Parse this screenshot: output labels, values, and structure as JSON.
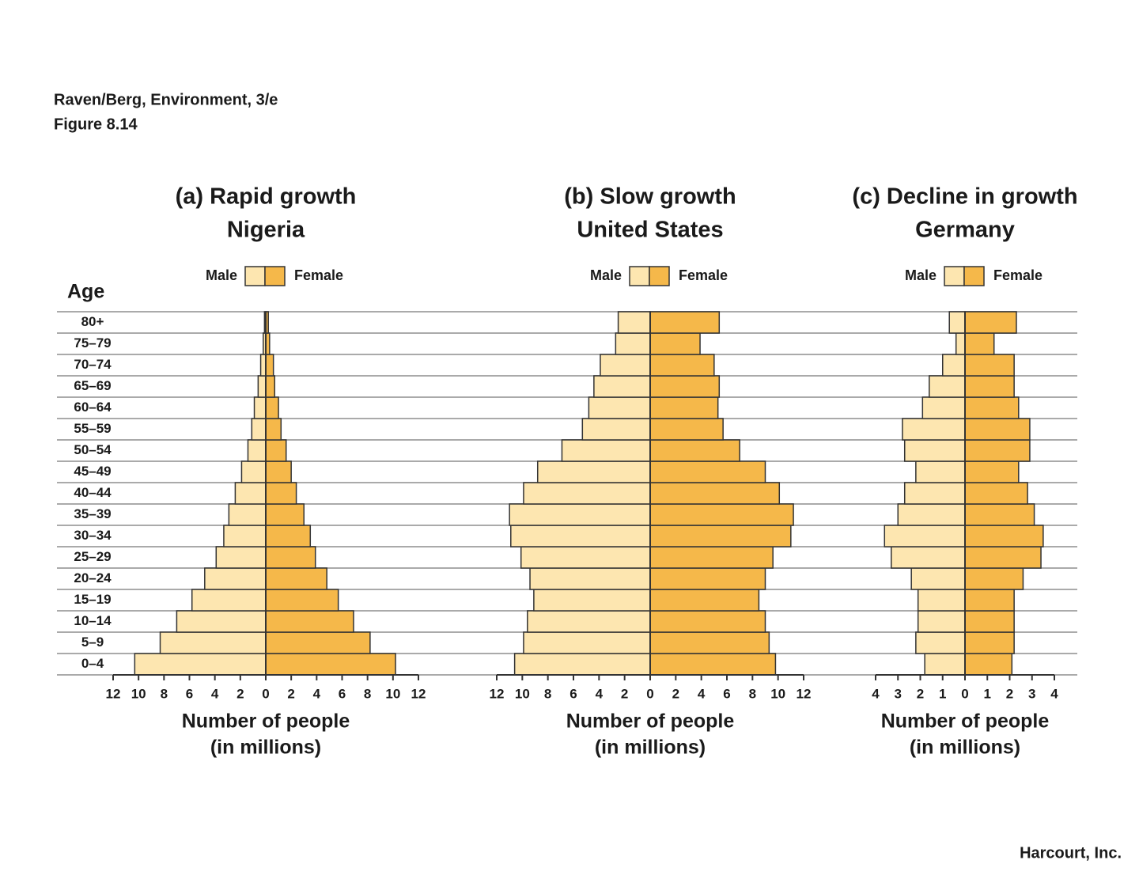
{
  "header": {
    "source": "Raven/Berg, Environment, 3/e",
    "figure": "Figure 8.14"
  },
  "footer": "Harcourt, Inc.",
  "chart_data": [
    {
      "type": "pyramid",
      "title": "(a) Rapid growth",
      "subtitle": "Nigeria",
      "ylabel": "Age",
      "xlabel": [
        "Number of people",
        "(in millions)"
      ],
      "categories": [
        "0–4",
        "5–9",
        "10–14",
        "15–19",
        "20–24",
        "25–29",
        "30–34",
        "35–39",
        "40–44",
        "45–49",
        "50–54",
        "55–59",
        "60–64",
        "65–69",
        "70–74",
        "75–79",
        "80+"
      ],
      "series": [
        {
          "name": "Male",
          "color": "#fde6b0",
          "values": [
            10.3,
            8.3,
            7.0,
            5.8,
            4.8,
            3.9,
            3.3,
            2.9,
            2.4,
            1.9,
            1.4,
            1.1,
            0.9,
            0.6,
            0.4,
            0.2,
            0.1
          ]
        },
        {
          "name": "Female",
          "color": "#f5b84a",
          "values": [
            10.2,
            8.2,
            6.9,
            5.7,
            4.8,
            3.9,
            3.5,
            3.0,
            2.4,
            2.0,
            1.6,
            1.2,
            1.0,
            0.7,
            0.6,
            0.3,
            0.2
          ]
        }
      ],
      "xlim": [
        0,
        12
      ],
      "xticks": [
        0,
        2,
        4,
        6,
        8,
        10,
        12
      ]
    },
    {
      "type": "pyramid",
      "title": "(b) Slow growth",
      "subtitle": "United States",
      "xlabel": [
        "Number of people",
        "(in millions)"
      ],
      "series": [
        {
          "name": "Male",
          "color": "#fde6b0",
          "values": [
            10.6,
            9.9,
            9.6,
            9.1,
            9.4,
            10.1,
            10.9,
            11.0,
            9.9,
            8.8,
            6.9,
            5.3,
            4.8,
            4.4,
            3.9,
            2.7,
            2.5
          ]
        },
        {
          "name": "Female",
          "color": "#f5b84a",
          "values": [
            9.8,
            9.3,
            9.0,
            8.5,
            9.0,
            9.6,
            11.0,
            11.2,
            10.1,
            9.0,
            7.0,
            5.7,
            5.3,
            5.4,
            5.0,
            3.9,
            5.4
          ]
        }
      ],
      "xlim": [
        0,
        12
      ],
      "xticks": [
        0,
        2,
        4,
        6,
        8,
        10,
        12
      ]
    },
    {
      "type": "pyramid",
      "title": "(c) Decline in growth",
      "subtitle": "Germany",
      "xlabel": [
        "Number of people",
        "(in millions)"
      ],
      "series": [
        {
          "name": "Male",
          "color": "#fde6b0",
          "values": [
            1.8,
            2.2,
            2.1,
            2.1,
            2.4,
            3.3,
            3.6,
            3.0,
            2.7,
            2.2,
            2.7,
            2.8,
            1.9,
            1.6,
            1.0,
            0.4,
            0.7
          ]
        },
        {
          "name": "Female",
          "color": "#f5b84a",
          "values": [
            2.1,
            2.2,
            2.2,
            2.2,
            2.6,
            3.4,
            3.5,
            3.1,
            2.8,
            2.4,
            2.9,
            2.9,
            2.4,
            2.2,
            2.2,
            1.3,
            2.3
          ]
        }
      ],
      "xlim": [
        0,
        4
      ],
      "xticks": [
        0,
        1,
        2,
        3,
        4
      ]
    }
  ]
}
